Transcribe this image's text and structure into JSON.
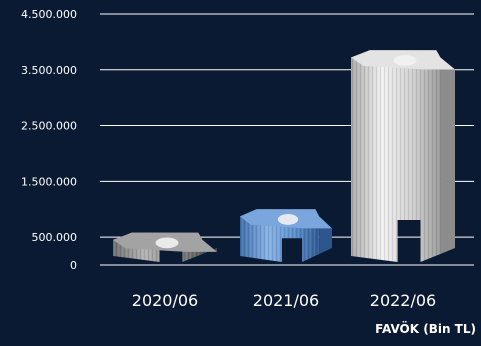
{
  "colors": {
    "background": "#0b1a33",
    "gridline": "#ffffff",
    "text": "#ffffff",
    "bar_2020": "#8e8e8e",
    "bar_2021": "#4f86c9",
    "bar_2022": "#cfcfcf"
  },
  "chart_data": {
    "type": "bar",
    "title": "",
    "xlabel": "FAVÖK (Bin TL)",
    "ylabel": "",
    "ylim": [
      0,
      4500000
    ],
    "yticks": [
      0,
      500000,
      1500000,
      2500000,
      3500000,
      4500000
    ],
    "ytick_labels": [
      "0",
      "500.000",
      "1.500.000",
      "2.500.000",
      "3.500.000",
      "4.500.000"
    ],
    "grid": true,
    "legend": "none",
    "categories": [
      "2020/06",
      "2021/06",
      "2022/06"
    ],
    "values": [
      580000,
      1000000,
      3850000
    ]
  }
}
